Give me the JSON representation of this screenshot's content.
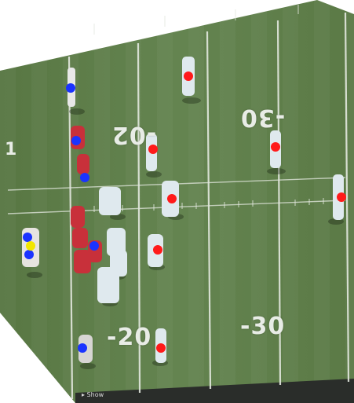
{
  "field": {
    "grass_color": "#5f7e48",
    "grass_light": "#6d8c55",
    "line_color": "#e3e8df",
    "yard_numbers": [
      {
        "text": "-02",
        "rotated": true
      },
      {
        "text": "-30",
        "rotated": true
      },
      {
        "text": "-20",
        "rotated": false
      },
      {
        "text": "-30",
        "rotated": false
      }
    ],
    "sideline_number": "1",
    "caption": "▸ Show"
  },
  "markers": {
    "red_color": "#ff1a1a",
    "blue_color": "#1a33ff",
    "yellow_color": "#f2e600",
    "red_count": 9,
    "blue_count": 8,
    "yellow_count": 1
  },
  "team_colors": {
    "offense_jersey": "#c8303a",
    "offense_helmet": "#eeeeee",
    "defense_jersey": "#dfe9ee",
    "defense_pants": "#6aa7c7"
  }
}
